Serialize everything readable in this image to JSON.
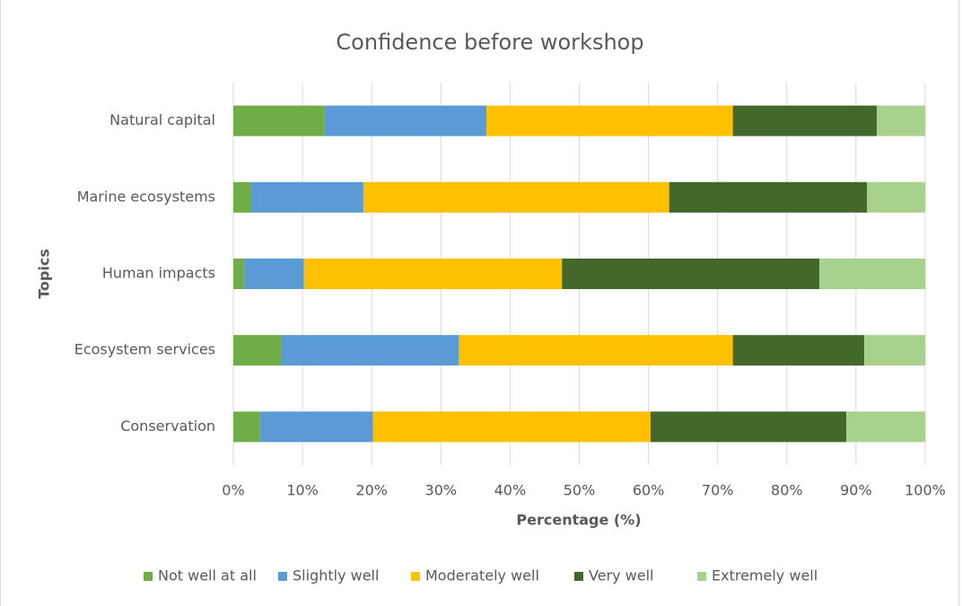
{
  "chart_data": {
    "type": "stacked-bar-horizontal",
    "title": "Confidence before workshop",
    "y_label": "Topics",
    "x_label": "Percentage (%)",
    "categories": [
      "Natural capital",
      "Marine ecosystems",
      "Human impacts",
      "Ecosystem services",
      "Conservation"
    ],
    "series": [
      {
        "name": "Not well at all",
        "color": "#70ad47",
        "values": [
          13.2,
          2.6,
          1.6,
          7.0,
          3.8
        ]
      },
      {
        "name": "Slightly well",
        "color": "#5b9bd5",
        "values": [
          23.4,
          16.2,
          8.6,
          25.6,
          16.4
        ]
      },
      {
        "name": "Moderately well",
        "color": "#ffc000",
        "values": [
          35.6,
          44.2,
          37.3,
          39.6,
          40.1
        ]
      },
      {
        "name": "Very well",
        "color": "#43682b",
        "values": [
          20.8,
          28.6,
          37.2,
          19.0,
          28.3
        ]
      },
      {
        "name": "Extremely well",
        "color": "#a9d18e",
        "values": [
          7.0,
          8.4,
          15.3,
          8.8,
          11.4
        ]
      }
    ],
    "xlim": [
      0,
      100
    ],
    "xticks": [
      {
        "value": 0,
        "label": "0%"
      },
      {
        "value": 10,
        "label": "10%"
      },
      {
        "value": 20,
        "label": "20%"
      },
      {
        "value": 30,
        "label": "30%"
      },
      {
        "value": 40,
        "label": "40%"
      },
      {
        "value": 50,
        "label": "50%"
      },
      {
        "value": 60,
        "label": "60%"
      },
      {
        "value": 70,
        "label": "70%"
      },
      {
        "value": 80,
        "label": "80%"
      },
      {
        "value": 90,
        "label": "90%"
      },
      {
        "value": 100,
        "label": "100%"
      }
    ],
    "grid": true,
    "legend": "bottom"
  }
}
